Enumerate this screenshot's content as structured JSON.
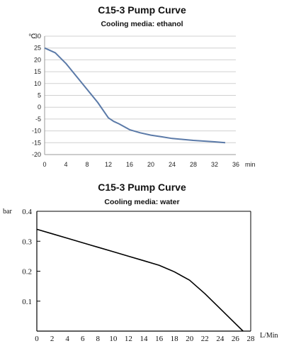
{
  "chart_data": [
    {
      "type": "line",
      "title": "C15-3 Pump Curve",
      "subtitle": "Cooling media: ethanol",
      "x_unit": "min",
      "y_unit": "℃",
      "xlim": [
        0,
        36
      ],
      "ylim": [
        -20,
        30
      ],
      "x_ticks": [
        "0",
        "4",
        "8",
        "12",
        "16",
        "20",
        "24",
        "28",
        "32",
        "36"
      ],
      "y_ticks": [
        "30",
        "25",
        "20",
        "15",
        "10",
        "5",
        "0",
        "-5",
        "-10",
        "-15",
        "-20"
      ],
      "grid": "horizontal",
      "line_color": "#5b7aa8",
      "series": [
        {
          "x": [
            0,
            2,
            4,
            6,
            8,
            10,
            12,
            13,
            14,
            16,
            18,
            20,
            22,
            24,
            26,
            28,
            30,
            32,
            34
          ],
          "y": [
            25,
            23,
            18.5,
            13,
            7.5,
            2,
            -4.5,
            -6,
            -7,
            -9.5,
            -10.8,
            -11.8,
            -12.5,
            -13.2,
            -13.6,
            -14,
            -14.3,
            -14.6,
            -15
          ]
        }
      ]
    },
    {
      "type": "line",
      "title": "C15-3 Pump Curve",
      "subtitle": "Cooling media: water",
      "x_unit": "L/Min",
      "y_unit": "bar",
      "xlim": [
        0,
        28
      ],
      "ylim": [
        0,
        0.4
      ],
      "x_ticks": [
        "0",
        "2",
        "4",
        "6",
        "8",
        "10",
        "12",
        "14",
        "16",
        "18",
        "20",
        "22",
        "24",
        "26",
        "28"
      ],
      "y_ticks": [
        "0.4",
        "0.3",
        "0.2",
        "0.1"
      ],
      "grid": "none",
      "line_color": "#000000",
      "series": [
        {
          "x": [
            0,
            2,
            4,
            6,
            8,
            10,
            12,
            14,
            16,
            18,
            20,
            22,
            24,
            26,
            27
          ],
          "y": [
            0.34,
            0.325,
            0.31,
            0.295,
            0.28,
            0.265,
            0.25,
            0.235,
            0.22,
            0.198,
            0.17,
            0.125,
            0.075,
            0.025,
            0
          ]
        }
      ]
    }
  ]
}
